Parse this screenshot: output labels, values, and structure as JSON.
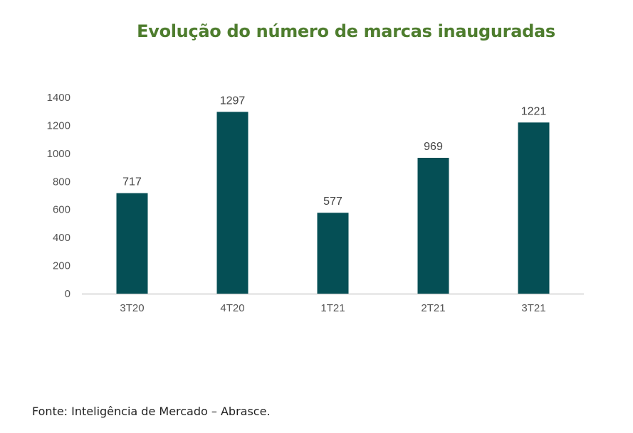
{
  "chart_data": {
    "type": "bar",
    "title": "Evolução do número de marcas inauguradas",
    "categories": [
      "3T20",
      "4T20",
      "1T21",
      "2T21",
      "3T21"
    ],
    "values": [
      717,
      1297,
      577,
      969,
      1221
    ],
    "data_labels": [
      "717",
      "1297",
      "577",
      "969",
      "1221"
    ],
    "ylim": [
      0,
      1400
    ],
    "yticks": [
      0,
      200,
      400,
      600,
      800,
      1000,
      1200,
      1400
    ],
    "grid": false,
    "bar_color": "#054f55",
    "title_color": "#4e7d2e"
  },
  "source": "Fonte: Inteligência de Mercado – Abrasce."
}
